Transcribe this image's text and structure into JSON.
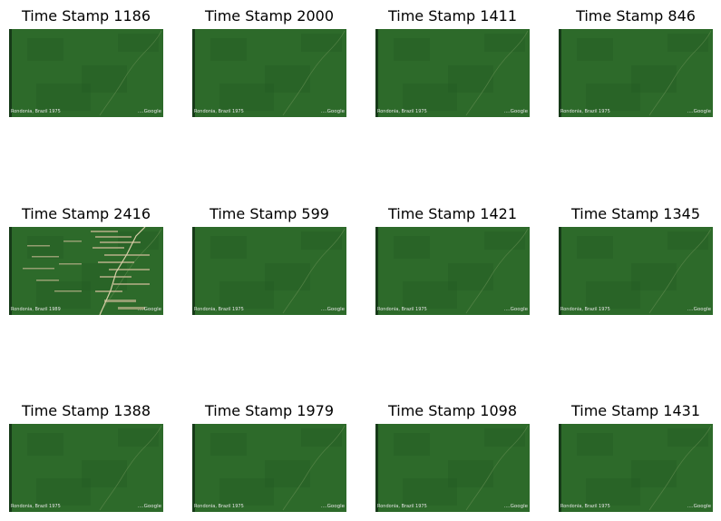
{
  "grid": {
    "panels": [
      {
        "title": "Time Stamp 1186",
        "caption": "Rondonia, Brazil 1975",
        "brand": "....Google",
        "scene": "forest"
      },
      {
        "title": "Time Stamp 2000",
        "caption": "Rondonia, Brazil 1975",
        "brand": "....Google",
        "scene": "forest"
      },
      {
        "title": "Time Stamp 1411",
        "caption": "Rondonia, Brazil 1975",
        "brand": "....Google",
        "scene": "forest"
      },
      {
        "title": "Time Stamp 846",
        "caption": "Rondonia, Brazil 1975",
        "brand": "....Google",
        "scene": "forest"
      },
      {
        "title": "Time Stamp 2416",
        "caption": "Rondonia, Brazil 1989",
        "brand": "....Google",
        "scene": "deforested"
      },
      {
        "title": "Time Stamp 599",
        "caption": "Rondonia, Brazil 1975",
        "brand": "....Google",
        "scene": "forest"
      },
      {
        "title": "Time Stamp 1421",
        "caption": "Rondonia, Brazil 1975",
        "brand": "....Google",
        "scene": "forest"
      },
      {
        "title": "Time Stamp 1345",
        "caption": "Rondonia, Brazil 1975",
        "brand": "....Google",
        "scene": "forest"
      },
      {
        "title": "Time Stamp 1388",
        "caption": "Rondonia, Brazil 1975",
        "brand": "....Google",
        "scene": "forest"
      },
      {
        "title": "Time Stamp 1979",
        "caption": "Rondonia, Brazil 1975",
        "brand": "....Google",
        "scene": "forest"
      },
      {
        "title": "Time Stamp 1098",
        "caption": "Rondonia, Brazil 1975",
        "brand": "....Google",
        "scene": "forest"
      },
      {
        "title": "Time Stamp 1431",
        "caption": "Rondonia, Brazil 1975",
        "brand": "....Google",
        "scene": "forest"
      }
    ],
    "colors": {
      "forest": "#2d6a2a",
      "forest_dark": "#225a22",
      "forest_edge": "#163a18",
      "river": "#5f8a4f",
      "cleared": "#b8b08a"
    }
  }
}
